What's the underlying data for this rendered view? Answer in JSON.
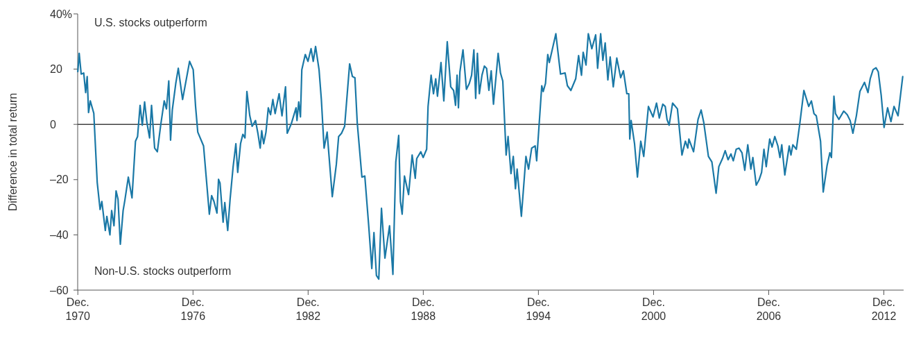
{
  "chart_data": {
    "type": "line",
    "ylabel": "Difference in total return",
    "annotations": [
      "U.S. stocks outperform",
      "Non-U.S. stocks outperform"
    ],
    "xlim": [
      "1970-11-28",
      "2013-12-12"
    ],
    "xticks": [
      {
        "value": "1970-12",
        "label": "Dec.\n1970"
      },
      {
        "value": "1976-12",
        "label": "Dec.\n1976"
      },
      {
        "value": "1982-12",
        "label": "Dec.\n1982"
      },
      {
        "value": "1988-12",
        "label": "Dec.\n1988"
      },
      {
        "value": "1994-12",
        "label": "Dec.\n1994"
      },
      {
        "value": "2000-12",
        "label": "Dec.\n2000"
      },
      {
        "value": "2006-12",
        "label": "Dec.\n2006"
      },
      {
        "value": "2012-12",
        "label": "Dec.\n2012"
      }
    ],
    "ylim": [
      -60,
      40
    ],
    "yticks": [
      {
        "value": -60,
        "label": "–60"
      },
      {
        "value": -40,
        "label": "–40"
      },
      {
        "value": -20,
        "label": "–20"
      },
      0,
      20,
      {
        "value": 40,
        "label": "40%"
      }
    ],
    "ref_lines": [
      {
        "axis": "y",
        "value": 0,
        "color": "#404040"
      }
    ],
    "series": [
      {
        "color": "#1a78a6",
        "x": [
          "1970-12-01",
          "1970-12-27",
          "1971-02-03",
          "1971-03-23",
          "1971-04-29",
          "1971-05-28",
          "1971-06-23",
          "1971-07-26",
          "1971-10-01",
          "1971-12-05",
          "1972-01-29",
          "1972-03-02",
          "1972-05-07",
          "1972-06-05",
          "1972-08-03",
          "1972-09-05",
          "1972-10-19",
          "1972-11-28",
          "1973-01-04",
          "1973-02-17",
          "1973-04-11",
          "1973-05-14",
          "1973-07-19",
          "1973-09-27",
          "1973-12-02",
          "1974-01-11",
          "1974-02-28",
          "1974-04-11",
          "1974-05-25",
          "1974-07-08",
          "1974-08-28",
          "1974-10-04",
          "1974-12-02",
          "1975-01-22",
          "1975-03-27",
          "1975-06-02",
          "1975-07-15",
          "1975-08-28",
          "1975-10-01",
          "1975-11-03",
          "1976-01-08",
          "1976-02-25",
          "1976-05-17",
          "1976-09-27",
          "1976-12-05",
          "1977-01-19",
          "1977-03-02",
          "1977-06-20",
          "1977-10-08",
          "1977-11-21",
          "1978-01-04",
          "1978-03-02",
          "1978-04-01",
          "1978-04-29",
          "1978-06-27",
          "1978-07-29",
          "1978-09-23",
          "1978-11-07",
          "1979-01-04",
          "1979-02-25",
          "1979-04-01",
          "1979-05-25",
          "1979-07-08",
          "1979-08-17",
          "1979-09-23",
          "1979-11-17",
          "1980-01-01",
          "1980-03-05",
          "1980-04-19",
          "1980-06-02",
          "1980-07-01",
          "1980-08-07",
          "1980-09-20",
          "1980-11-03",
          "1980-12-16",
          "1981-01-29",
          "1981-03-13",
          "1981-05-28",
          "1981-07-22",
          "1981-09-27",
          "1981-10-29",
          "1982-01-15",
          "1982-04-15",
          "1982-05-03",
          "1982-06-05",
          "1982-07-08",
          "1982-08-03",
          "1982-10-08",
          "1982-11-28",
          "1983-01-26",
          "1983-03-09",
          "1983-04-22",
          "1983-06-27",
          "1983-08-10",
          "1983-10-01",
          "1983-11-28",
          "1984-03-05",
          "1984-05-21",
          "1984-07-04",
          "1984-08-28",
          "1984-10-26",
          "1985-01-29",
          "1985-03-23",
          "1985-05-10",
          "1985-06-23",
          "1985-09-20",
          "1985-11-14",
          "1986-01-29",
          "1986-03-27",
          "1986-05-07",
          "1986-06-23",
          "1986-08-07",
          "1986-09-27",
          "1986-12-02",
          "1987-02-28",
          "1987-05-03",
          "1987-06-27",
          "1987-08-21",
          "1987-09-23",
          "1987-10-26",
          "1987-12-09",
          "1988-02-25",
          "1988-05-03",
          "1988-07-01",
          "1988-07-29",
          "1988-10-15",
          "1988-11-28",
          "1989-02-03",
          "1989-03-02",
          "1989-04-29",
          "1989-06-13",
          "1989-07-26",
          "1989-08-28",
          "1989-11-03",
          "1989-12-27",
          "1990-03-02",
          "1990-05-07",
          "1990-07-01",
          "1990-08-07",
          "1990-09-05",
          "1990-10-01",
          "1990-10-29",
          "1990-12-27",
          "1991-03-02",
          "1991-04-26",
          "1991-06-09",
          "1991-07-22",
          "1991-08-25",
          "1991-09-27",
          "1991-11-03",
          "1991-12-23",
          "1992-02-07",
          "1992-03-20",
          "1992-05-03",
          "1992-06-16",
          "1992-07-29",
          "1992-10-26",
          "1992-12-09",
          "1993-01-22",
          "1993-03-27",
          "1993-05-03",
          "1993-06-27",
          "1993-08-10",
          "1993-09-20",
          "1993-10-22",
          "1994-01-11",
          "1994-04-08",
          "1994-05-28",
          "1994-07-26",
          "1994-10-01",
          "1994-10-29",
          "1995-02-03",
          "1995-03-02",
          "1995-04-15",
          "1995-05-28",
          "1995-06-27",
          "1995-10-29",
          "1996-01-26",
          "1996-04-22",
          "1996-06-05",
          "1996-08-10",
          "1996-11-10",
          "1997-01-04",
          "1997-02-28",
          "1997-04-01",
          "1997-05-25",
          "1997-07-08",
          "1997-09-13",
          "1997-11-25",
          "1998-01-01",
          "1998-02-28",
          "1998-04-11",
          "1998-05-25",
          "1998-07-15",
          "1998-08-28",
          "1998-10-26",
          "1999-01-01",
          "1999-03-16",
          "1999-05-07",
          "1999-07-11",
          "1999-08-17",
          "1999-09-05",
          "1999-10-01",
          "1999-12-05",
          "2000-01-29",
          "2000-04-01",
          "2000-05-28",
          "2000-08-25",
          "2000-11-21",
          "2001-01-26",
          "2001-03-20",
          "2001-05-25",
          "2001-07-11",
          "2001-08-14",
          "2001-09-23",
          "2001-11-28",
          "2002-02-28",
          "2002-05-25",
          "2002-07-29",
          "2002-09-13",
          "2002-10-04",
          "2003-01-01",
          "2003-03-27",
          "2003-05-25",
          "2003-07-15",
          "2003-10-11",
          "2003-12-16",
          "2004-03-05",
          "2004-04-26",
          "2004-07-04",
          "2004-08-25",
          "2004-10-19",
          "2004-12-13",
          "2005-01-26",
          "2005-03-23",
          "2005-05-14",
          "2005-07-11",
          "2005-09-02",
          "2005-10-29",
          "2005-12-27",
          "2006-02-03",
          "2006-04-08",
          "2006-06-05",
          "2006-07-19",
          "2006-09-02",
          "2006-10-15",
          "2006-12-20",
          "2007-02-03",
          "2007-03-27",
          "2007-05-25",
          "2007-07-04",
          "2007-08-07",
          "2007-10-04",
          "2007-12-27",
          "2008-01-29",
          "2008-03-05",
          "2008-05-10",
          "2008-07-15",
          "2008-10-01",
          "2009-01-01",
          "2009-02-21",
          "2009-04-11",
          "2009-05-25",
          "2009-08-14",
          "2009-10-04",
          "2009-12-16",
          "2010-02-07",
          "2010-03-09",
          "2010-04-26",
          "2010-05-25",
          "2010-07-29",
          "2010-10-29",
          "2011-01-04",
          "2011-02-28",
          "2011-04-22",
          "2011-06-27",
          "2011-09-02",
          "2011-11-28",
          "2012-02-03",
          "2012-03-16",
          "2012-05-10",
          "2012-07-04",
          "2012-08-17",
          "2012-10-11",
          "2012-12-05",
          "2013-02-10",
          "2013-04-15",
          "2013-06-13",
          "2013-08-28",
          "2013-11-25"
        ],
        "values": [
          19.1,
          25.7,
          18.2,
          18.6,
          11.5,
          17.3,
          4.3,
          8.5,
          4.0,
          -21,
          -30.8,
          -27.9,
          -38.4,
          -33.3,
          -40,
          -31.2,
          -36.7,
          -24.1,
          -27.1,
          -43.4,
          -31.2,
          -27.5,
          -19.1,
          -26.6,
          -6.1,
          -4.4,
          6.9,
          -0.3,
          8.1,
          0.6,
          -4.9,
          6.9,
          -8.6,
          -9.9,
          -0.3,
          8.5,
          5.6,
          15.7,
          -5.7,
          5.2,
          14.8,
          20.3,
          9.0,
          22.8,
          19.8,
          6.5,
          -2.8,
          -7.8,
          -32.5,
          -25.8,
          -27.9,
          -32.1,
          -19.9,
          -21.2,
          -35.4,
          -28.3,
          -38.4,
          -27.1,
          -15.3,
          -7.0,
          -17.4,
          -7.0,
          -3.6,
          -4.9,
          11.9,
          3.1,
          -0.7,
          1.4,
          -3.2,
          -8.6,
          -2.3,
          -7.0,
          -2.8,
          6.0,
          3.5,
          9.0,
          3.9,
          11.1,
          3.1,
          13.6,
          -3.2,
          0.2,
          6.0,
          1.4,
          8.1,
          2.7,
          19.8,
          25.3,
          22.8,
          27.4,
          22.8,
          28.2,
          19.8,
          9.0,
          -8.6,
          -2.8,
          -26.2,
          -14.5,
          -4.4,
          -3.2,
          -0.7,
          21.9,
          17.3,
          16.9,
          0.6,
          -19.1,
          -18.7,
          -37.1,
          -52.2,
          -39.2,
          -54.7,
          -56.0,
          -30.4,
          -48.4,
          -36.7,
          -54.3,
          -13.6,
          -4.0,
          -27.9,
          -32.5,
          -18.7,
          -25.4,
          -11.1,
          -19.5,
          -12.4,
          -9.9,
          -12.0,
          -9.0,
          6.5,
          17.8,
          11.1,
          16.5,
          10.2,
          22.4,
          8.5,
          29.9,
          13.6,
          12.3,
          6.9,
          17.8,
          6.0,
          19.0,
          27.0,
          12.7,
          14.8,
          17.8,
          27.0,
          9.4,
          25.7,
          11.1,
          17.8,
          21.1,
          20.3,
          12.3,
          19.4,
          7.3,
          25.7,
          18.6,
          15.7,
          -11.1,
          -4.4,
          -17.8,
          -11.6,
          -23.3,
          -16.2,
          -33.3,
          -11.6,
          -16.2,
          -8.6,
          -7.8,
          -13.2,
          14.0,
          11.9,
          14.8,
          25.3,
          22.4,
          32.8,
          18.2,
          18.6,
          14.0,
          12.3,
          16.5,
          24.9,
          17.8,
          26.1,
          21.5,
          32.8,
          27.4,
          32.4,
          20.3,
          32.8,
          23.2,
          29.5,
          16.1,
          24.4,
          13.6,
          24.0,
          16.9,
          19.4,
          11.1,
          11.1,
          -5.3,
          1.4,
          -7.0,
          -19.1,
          -6.1,
          -11.6,
          6.5,
          2.7,
          7.7,
          2.3,
          7.3,
          6.5,
          1.8,
          -0.3,
          7.7,
          5.6,
          -11.1,
          -6.1,
          -8.6,
          -5.3,
          -9.9,
          1.8,
          5.2,
          0.6,
          -11.6,
          -13.6,
          -24.9,
          -15.3,
          -12.4,
          -9.5,
          -12.8,
          -10.7,
          -13.2,
          -9.0,
          -8.6,
          -10.3,
          -16.6,
          -7.4,
          -16.2,
          -12.0,
          -22.0,
          -19.9,
          -17.4,
          -9.0,
          -15.3,
          -5.3,
          -8.2,
          -4.4,
          -7.8,
          -12.0,
          -7.4,
          -18.3,
          -7.8,
          -11.1,
          -7.4,
          -9.0,
          0.2,
          12.3,
          6.5,
          8.5,
          3.9,
          3.1,
          -6.1,
          -24.5,
          -14.9,
          -10.3,
          -12.0,
          10.2,
          3.9,
          1.8,
          4.8,
          3.5,
          1.4,
          -3.2,
          3.1,
          11.9,
          15.2,
          11.5,
          16.5,
          19.8,
          20.5,
          19.0,
          10.6,
          -1.1,
          6.0,
          1.0,
          6.5,
          3.1,
          17.3
        ]
      }
    ]
  }
}
